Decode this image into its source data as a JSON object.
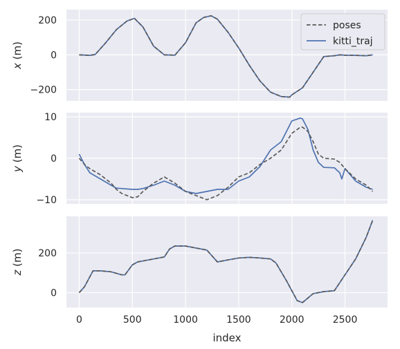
{
  "chart_data": {
    "type": "line",
    "xlabel": "index",
    "x_ticks": [
      0,
      500,
      1000,
      1500,
      2000,
      2500
    ],
    "xlim": [
      -120,
      2900
    ],
    "legend": {
      "placement": "top-right",
      "entries": [
        "poses",
        "kitti_traj"
      ]
    },
    "colors": {
      "poses": "#595959",
      "kitti_traj": "#4c72b0",
      "panel_bg": "#eaeaf2",
      "grid": "#ffffff"
    },
    "grid": true,
    "panels": [
      {
        "ylabel_var": "x",
        "ylabel_unit": " (m)",
        "ylim": [
          -265,
          260
        ],
        "y_ticks": [
          -200,
          0,
          200
        ],
        "y_tick_labels": [
          "−200",
          "0",
          "200"
        ],
        "series": [
          {
            "name": "poses",
            "style": "dashed",
            "x": [
              0,
              100,
              150,
              250,
              350,
              450,
              520,
              600,
              700,
              800,
              900,
              1000,
              1100,
              1170,
              1240,
              1300,
              1400,
              1500,
              1600,
              1700,
              1800,
              1900,
              1980,
              2000,
              2050,
              2100,
              2200,
              2300,
              2400,
              2450,
              2500,
              2600,
              2700,
              2760
            ],
            "y": [
              0,
              -3,
              2,
              70,
              145,
              195,
              210,
              160,
              50,
              0,
              -2,
              70,
              185,
              215,
              225,
              205,
              130,
              40,
              -60,
              -150,
              -215,
              -240,
              -243,
              -230,
              -210,
              -190,
              -100,
              -10,
              -5,
              0,
              -2,
              -3,
              -5,
              0
            ]
          },
          {
            "name": "kitti_traj",
            "style": "solid",
            "x": [
              0,
              100,
              150,
              250,
              350,
              450,
              520,
              600,
              700,
              800,
              900,
              1000,
              1100,
              1170,
              1240,
              1300,
              1400,
              1500,
              1600,
              1700,
              1800,
              1900,
              1980,
              2000,
              2050,
              2100,
              2200,
              2300,
              2400,
              2450,
              2500,
              2600,
              2700,
              2760
            ],
            "y": [
              0,
              -3,
              2,
              70,
              145,
              195,
              210,
              160,
              50,
              0,
              -2,
              70,
              185,
              215,
              225,
              205,
              130,
              40,
              -60,
              -150,
              -215,
              -240,
              -243,
              -230,
              -210,
              -190,
              -100,
              -10,
              -5,
              0,
              -2,
              -3,
              -5,
              0
            ]
          }
        ]
      },
      {
        "ylabel_var": "y",
        "ylabel_unit": " (m)",
        "ylim": [
          -11,
          11
        ],
        "y_ticks": [
          -10,
          0,
          10
        ],
        "y_tick_labels": [
          "−10",
          "0",
          "10"
        ],
        "series": [
          {
            "name": "poses",
            "style": "dashed",
            "x": [
              0,
              50,
              100,
              200,
              300,
              350,
              400,
              500,
              550,
              600,
              700,
              800,
              900,
              1000,
              1100,
              1200,
              1300,
              1400,
              1500,
              1600,
              1700,
              1800,
              1900,
              2000,
              2080,
              2100,
              2150,
              2200,
              2250,
              2300,
              2400,
              2450,
              2500,
              2600,
              2700,
              2760
            ],
            "y": [
              0,
              -1.5,
              -2.5,
              -4,
              -6,
              -7.5,
              -8.5,
              -9.5,
              -9.3,
              -8,
              -6,
              -4.5,
              -6,
              -8,
              -9,
              -10,
              -9,
              -7,
              -4.5,
              -3.5,
              -1.5,
              0,
              2,
              6,
              7.5,
              7.5,
              6.5,
              4,
              1,
              0,
              -0.2,
              -1,
              -2.5,
              -5,
              -6.5,
              -8
            ]
          },
          {
            "name": "kitti_traj",
            "style": "solid",
            "x": [
              0,
              50,
              100,
              200,
              300,
              350,
              400,
              500,
              550,
              600,
              700,
              800,
              900,
              1000,
              1100,
              1200,
              1300,
              1400,
              1500,
              1600,
              1700,
              1800,
              1900,
              2000,
              2080,
              2100,
              2150,
              2200,
              2250,
              2300,
              2400,
              2450,
              2470,
              2500,
              2600,
              2700,
              2760
            ],
            "y": [
              1,
              -1.5,
              -3.5,
              -5,
              -6.5,
              -7.2,
              -7.3,
              -7.5,
              -7.5,
              -7.3,
              -6.5,
              -5.5,
              -6.5,
              -8,
              -8.5,
              -8,
              -7.5,
              -7.5,
              -5.5,
              -4.5,
              -2,
              2,
              4,
              9,
              9.7,
              9.5,
              7,
              2,
              -1,
              -2.2,
              -2.3,
              -3.5,
              -5,
              -2.5,
              -5.5,
              -7,
              -7.5
            ]
          }
        ]
      },
      {
        "ylabel_var": "z",
        "ylabel_unit": " (m)",
        "ylim": [
          -75,
          385
        ],
        "y_ticks": [
          0,
          200
        ],
        "y_tick_labels": [
          "0",
          "200"
        ],
        "series": [
          {
            "name": "poses",
            "style": "dashed",
            "x": [
              0,
              50,
              100,
              130,
              200,
              300,
              400,
              430,
              500,
              550,
              600,
              700,
              800,
              850,
              900,
              1000,
              1100,
              1200,
              1250,
              1300,
              1400,
              1500,
              1600,
              1700,
              1800,
              1850,
              1950,
              2050,
              2100,
              2200,
              2300,
              2400,
              2500,
              2600,
              2700,
              2760
            ],
            "y": [
              0,
              30,
              80,
              110,
              110,
              105,
              90,
              90,
              140,
              155,
              160,
              170,
              180,
              220,
              235,
              235,
              225,
              215,
              185,
              155,
              165,
              175,
              178,
              175,
              170,
              150,
              60,
              -40,
              -50,
              -5,
              5,
              10,
              90,
              170,
              280,
              365
            ]
          },
          {
            "name": "kitti_traj",
            "style": "solid",
            "x": [
              0,
              50,
              100,
              130,
              200,
              300,
              400,
              430,
              500,
              550,
              600,
              700,
              800,
              850,
              900,
              1000,
              1100,
              1200,
              1250,
              1300,
              1400,
              1500,
              1600,
              1700,
              1800,
              1850,
              1950,
              2050,
              2100,
              2200,
              2300,
              2400,
              2500,
              2600,
              2700,
              2760
            ],
            "y": [
              0,
              30,
              80,
              110,
              110,
              105,
              90,
              90,
              140,
              155,
              160,
              170,
              180,
              220,
              235,
              235,
              225,
              215,
              185,
              155,
              165,
              175,
              178,
              175,
              170,
              150,
              60,
              -40,
              -50,
              -5,
              5,
              10,
              90,
              170,
              280,
              365
            ]
          }
        ]
      }
    ]
  }
}
